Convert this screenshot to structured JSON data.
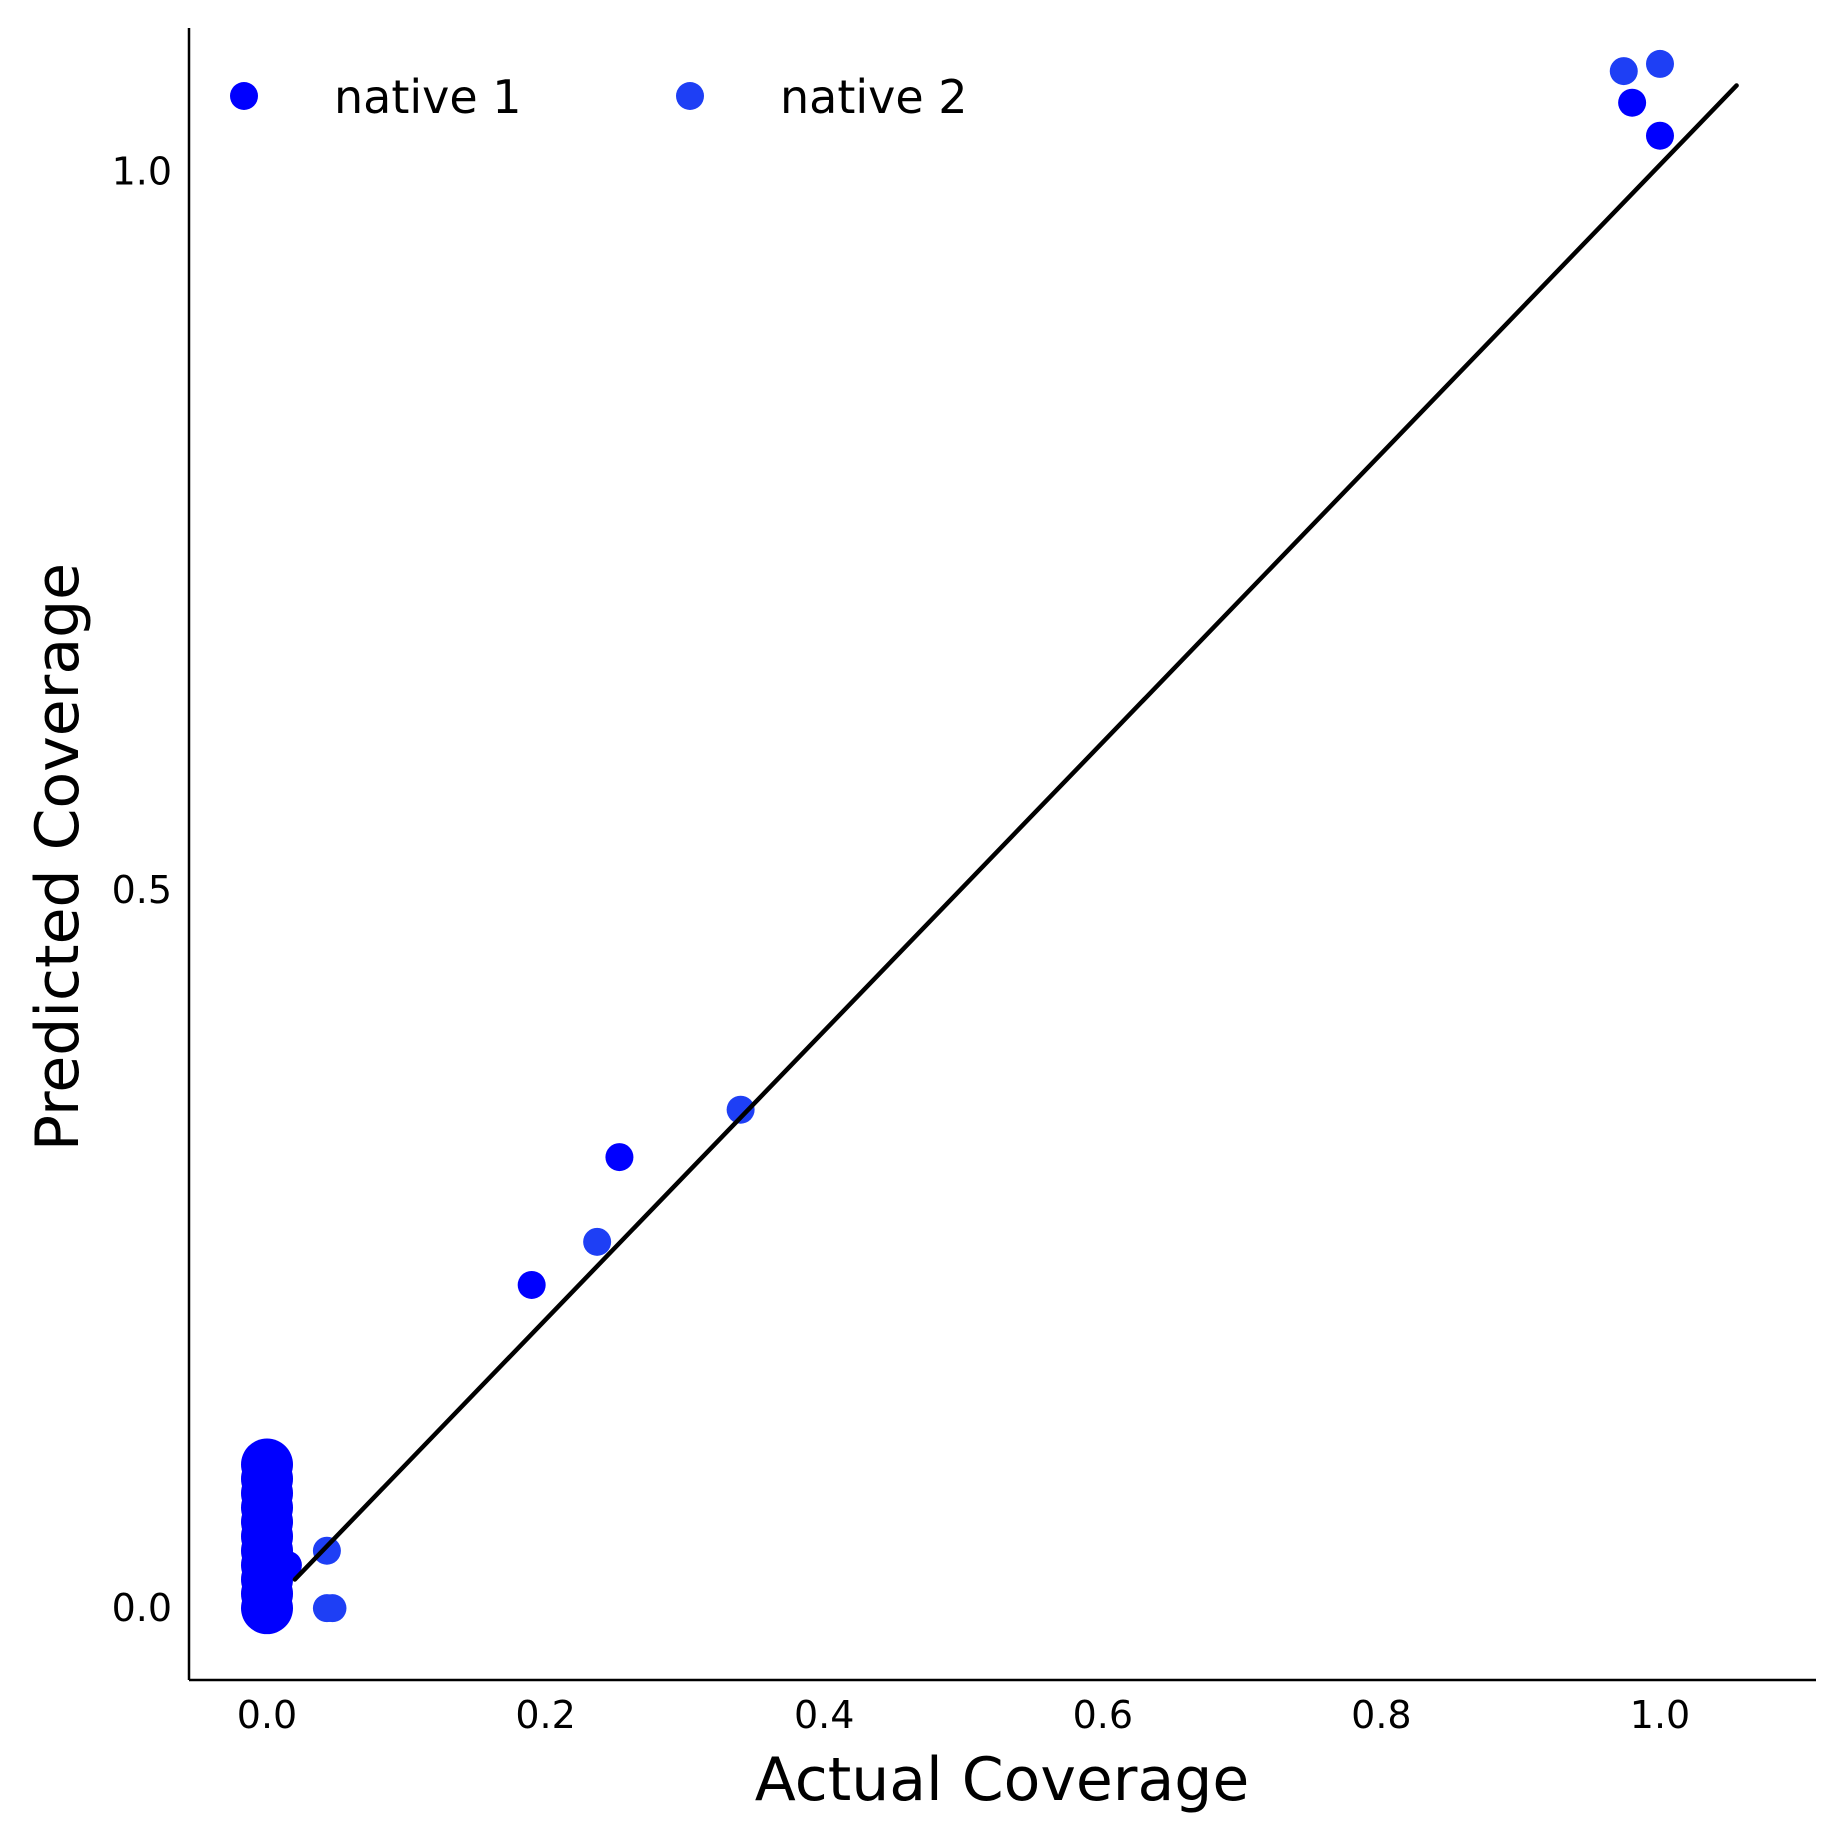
{
  "chart_data": {
    "type": "scatter",
    "xlabel": "Actual Coverage",
    "ylabel": "Predicted Coverage",
    "xlim": [
      -0.056,
      1.112
    ],
    "ylim": [
      -0.05,
      1.1
    ],
    "x_ticks": [
      "0.0",
      "0.2",
      "0.4",
      "0.6",
      "0.8",
      "1.0"
    ],
    "y_ticks": [
      "0.0",
      "0.5",
      "1.0"
    ],
    "x_tick_values": [
      0.0,
      0.2,
      0.4,
      0.6,
      0.8,
      1.0
    ],
    "y_tick_values": [
      0.0,
      0.5,
      1.0
    ],
    "grid": false,
    "legend_position": "top-left",
    "reference_line": {
      "x": [
        0.02,
        1.055
      ],
      "y": [
        0.02,
        1.06
      ],
      "color": "#000000"
    },
    "series": [
      {
        "name": "native 1",
        "color": "#0000ff",
        "points": [
          [
            0.0,
            0.0
          ],
          [
            0.0,
            0.01
          ],
          [
            0.0,
            0.02
          ],
          [
            0.0,
            0.03
          ],
          [
            0.0,
            0.04
          ],
          [
            0.0,
            0.05
          ],
          [
            0.0,
            0.06
          ],
          [
            0.0,
            0.07
          ],
          [
            0.0,
            0.08
          ],
          [
            0.0,
            0.09
          ],
          [
            0.0,
            0.1
          ],
          [
            0.015,
            0.03
          ],
          [
            0.19,
            0.225
          ],
          [
            0.253,
            0.314
          ],
          [
            0.98,
            1.048
          ],
          [
            1.0,
            1.025
          ]
        ],
        "sizes": [
          "large",
          "large",
          "large",
          "large",
          "large",
          "large",
          "large",
          "large",
          "large",
          "large",
          "large",
          "small",
          "small",
          "small",
          "small",
          "small"
        ]
      },
      {
        "name": "native 2",
        "color": "#1e3ff5",
        "points": [
          [
            0.043,
            0.04
          ],
          [
            0.043,
            0.0
          ],
          [
            0.047,
            0.0
          ],
          [
            0.237,
            0.255
          ],
          [
            0.34,
            0.347
          ],
          [
            0.974,
            1.07
          ],
          [
            1.0,
            1.075
          ]
        ],
        "sizes": [
          "small",
          "small",
          "small",
          "small",
          "small",
          "small",
          "small"
        ]
      }
    ]
  }
}
